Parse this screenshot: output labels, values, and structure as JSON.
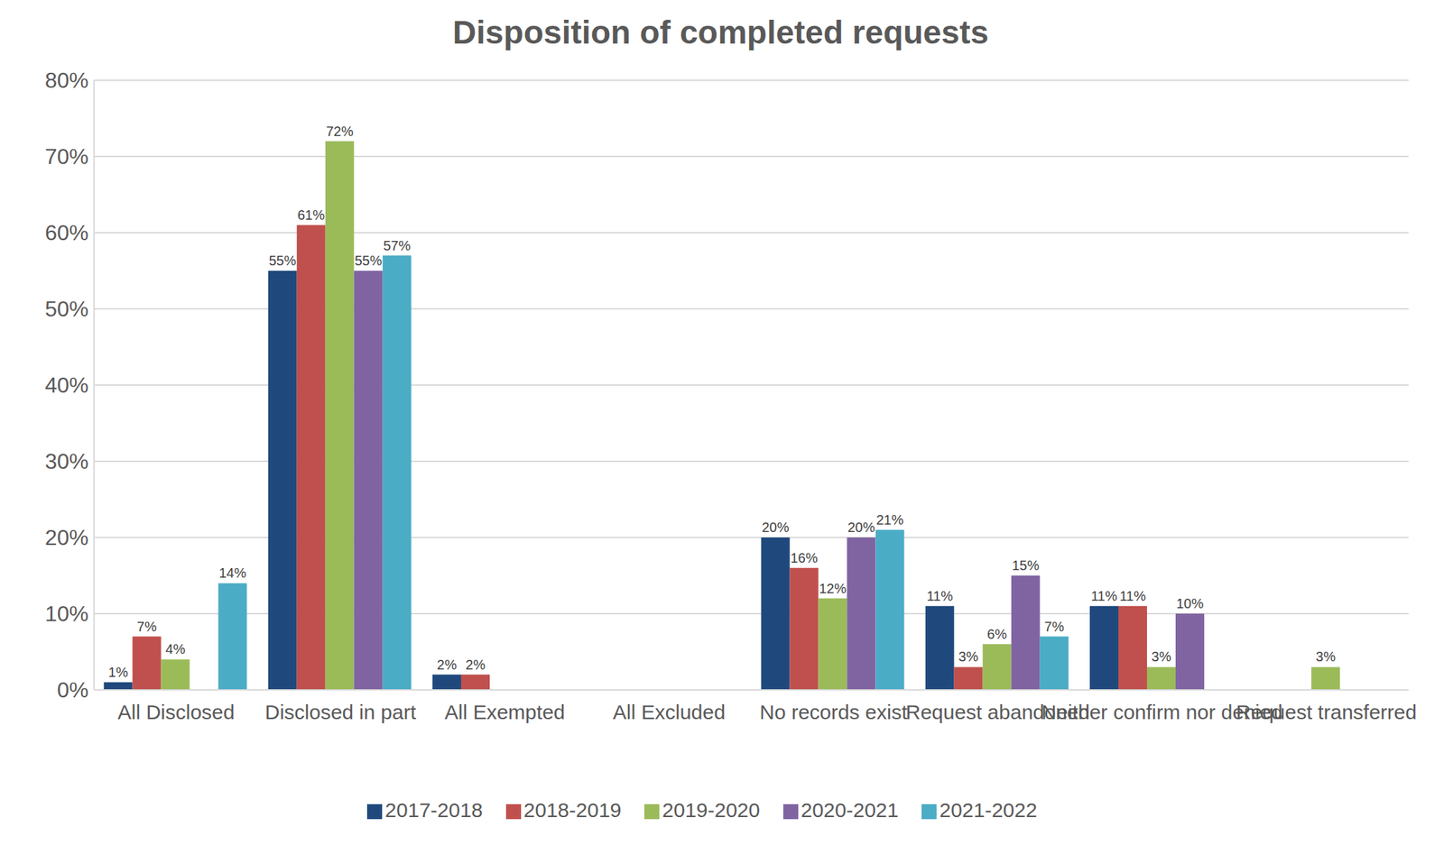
{
  "chart_data": {
    "type": "bar",
    "title": "Disposition of completed requests",
    "categories": [
      "All Disclosed",
      "Disclosed in part",
      "All Exempted",
      "All Excluded",
      "No records exist",
      "Request abandoned",
      "Neither confirm nor denied",
      "Request transferred"
    ],
    "series": [
      {
        "name": "2017-2018",
        "color": "#1f497d",
        "values": [
          1,
          55,
          2,
          0,
          20,
          11,
          11,
          0
        ],
        "value_labels": [
          "1%",
          "55%",
          "2%",
          null,
          "20%",
          "11%",
          "11%",
          null
        ]
      },
      {
        "name": "2018-2019",
        "color": "#c0504d",
        "values": [
          7,
          61,
          2,
          0,
          16,
          3,
          11,
          0
        ],
        "value_labels": [
          "7%",
          "61%",
          "2%",
          null,
          "16%",
          "3%",
          "11%",
          null
        ]
      },
      {
        "name": "2019-2020",
        "color": "#9bbb59",
        "values": [
          4,
          72,
          0,
          0,
          12,
          6,
          3,
          3
        ],
        "value_labels": [
          "4%",
          "72%",
          null,
          null,
          "12%",
          "6%",
          "3%",
          "3%"
        ]
      },
      {
        "name": "2020-2021",
        "color": "#8064a2",
        "values": [
          0,
          55,
          0,
          0,
          20,
          15,
          10,
          0
        ],
        "value_labels": [
          null,
          "55%",
          null,
          null,
          "20%",
          "15%",
          "10%",
          null
        ]
      },
      {
        "name": "2021-2022",
        "color": "#4bacc6",
        "values": [
          14,
          57,
          0,
          0,
          21,
          7,
          0,
          0
        ],
        "value_labels": [
          "14%",
          "57%",
          null,
          null,
          "21%",
          "7%",
          null,
          null
        ]
      }
    ],
    "ylim": [
      0,
      80
    ],
    "yticks": [
      {
        "value": 0,
        "label": "0%"
      },
      {
        "value": 10,
        "label": "10%"
      },
      {
        "value": 20,
        "label": "20%"
      },
      {
        "value": 30,
        "label": "30%"
      },
      {
        "value": 40,
        "label": "40%"
      },
      {
        "value": 50,
        "label": "50%"
      },
      {
        "value": 60,
        "label": "60%"
      },
      {
        "value": 70,
        "label": "70%"
      },
      {
        "value": 80,
        "label": "80%"
      }
    ],
    "grid": true,
    "data_labels": true,
    "legend": "bottom"
  }
}
